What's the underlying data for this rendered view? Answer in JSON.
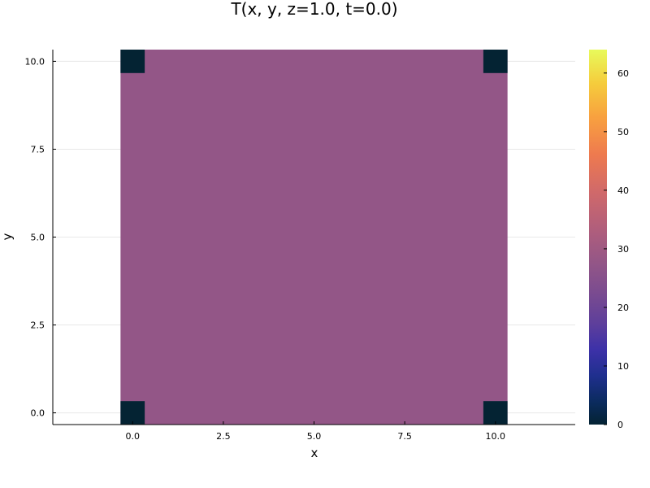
{
  "chart_data": {
    "type": "heatmap",
    "title": "T(x, y, z=1.0, t=0.0)",
    "xlabel": "x",
    "ylabel": "y",
    "xlim": [
      -2.2,
      12.2
    ],
    "ylim": [
      -0.3333,
      10.3333
    ],
    "x_ticks": [
      "0.0",
      "2.5",
      "5.0",
      "7.5",
      "10.0"
    ],
    "x_tick_values": [
      0,
      2.5,
      5,
      7.5,
      10
    ],
    "y_ticks": [
      "0.0",
      "2.5",
      "5.0",
      "7.5",
      "10.0"
    ],
    "y_tick_values": [
      0,
      2.5,
      5,
      7.5,
      10
    ],
    "grid": true,
    "cell_size": 0.6667,
    "grid_x": [
      0,
      10
    ],
    "grid_y": [
      0,
      10
    ],
    "interior_value": 27,
    "corner_cells": [
      {
        "x": 0,
        "y": 0,
        "value": 0
      },
      {
        "x": 10,
        "y": 0,
        "value": 0
      },
      {
        "x": 0,
        "y": 10,
        "value": 0
      },
      {
        "x": 10,
        "y": 10,
        "value": 0
      }
    ],
    "colorbar": {
      "min": 0,
      "max": 64,
      "ticks": [
        "0",
        "10",
        "20",
        "30",
        "40",
        "50",
        "60"
      ],
      "tick_values": [
        0,
        10,
        20,
        30,
        40,
        50,
        60
      ],
      "colormap": "thermal"
    },
    "colors": {
      "interior": "#935687",
      "corner": "#042333"
    }
  }
}
